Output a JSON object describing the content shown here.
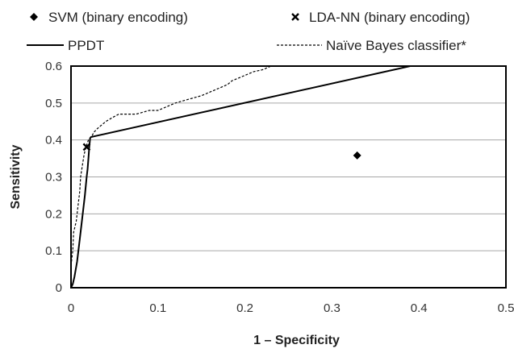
{
  "chart_data": {
    "type": "scatter",
    "title": "",
    "xlabel": "1 – Specificity",
    "ylabel": "Sensitivity",
    "xlim": [
      0,
      0.5
    ],
    "ylim": [
      0,
      0.6
    ],
    "x_ticks": [
      "0",
      "0.1",
      "0.2",
      "0.3",
      "0.4",
      "0.5"
    ],
    "y_ticks": [
      "0",
      "0.1",
      "0.2",
      "0.3",
      "0.4",
      "0.5",
      "0.6"
    ],
    "grid": "horizontal",
    "legend_position": "top",
    "series": [
      {
        "name": "SVM (binary encoding)",
        "kind": "marker",
        "marker": "diamond",
        "points": [
          [
            0.329,
            0.358
          ]
        ]
      },
      {
        "name": "LDA-NN (binary encoding)",
        "kind": "marker",
        "marker": "x",
        "points": [
          [
            0.018,
            0.381
          ]
        ]
      },
      {
        "name": "PPDT",
        "kind": "line",
        "style": "solid",
        "points": [
          [
            0,
            0
          ],
          [
            0.002,
            0.01
          ],
          [
            0.004,
            0.03
          ],
          [
            0.007,
            0.07
          ],
          [
            0.01,
            0.13
          ],
          [
            0.013,
            0.19
          ],
          [
            0.016,
            0.25
          ],
          [
            0.018,
            0.3
          ],
          [
            0.019,
            0.32
          ],
          [
            0.02,
            0.35
          ],
          [
            0.021,
            0.38
          ],
          [
            0.022,
            0.405
          ],
          [
            0.023,
            0.408
          ],
          [
            0.39,
            0.6
          ]
        ]
      },
      {
        "name": "Naïve Bayes classifier*",
        "kind": "line",
        "style": "dashed",
        "points": [
          [
            0,
            0.06
          ],
          [
            0.002,
            0.1
          ],
          [
            0.003,
            0.15
          ],
          [
            0.006,
            0.18
          ],
          [
            0.008,
            0.22
          ],
          [
            0.01,
            0.26
          ],
          [
            0.011,
            0.3
          ],
          [
            0.013,
            0.33
          ],
          [
            0.015,
            0.36
          ],
          [
            0.017,
            0.38
          ],
          [
            0.02,
            0.4
          ],
          [
            0.024,
            0.41
          ],
          [
            0.026,
            0.42
          ],
          [
            0.03,
            0.43
          ],
          [
            0.035,
            0.44
          ],
          [
            0.04,
            0.45
          ],
          [
            0.047,
            0.46
          ],
          [
            0.055,
            0.47
          ],
          [
            0.075,
            0.47
          ],
          [
            0.09,
            0.48
          ],
          [
            0.1,
            0.48
          ],
          [
            0.11,
            0.49
          ],
          [
            0.12,
            0.5
          ],
          [
            0.135,
            0.51
          ],
          [
            0.15,
            0.52
          ],
          [
            0.16,
            0.53
          ],
          [
            0.17,
            0.54
          ],
          [
            0.18,
            0.55
          ],
          [
            0.185,
            0.56
          ],
          [
            0.195,
            0.57
          ],
          [
            0.2,
            0.575
          ],
          [
            0.21,
            0.585
          ],
          [
            0.22,
            0.59
          ],
          [
            0.23,
            0.6
          ]
        ]
      }
    ]
  }
}
